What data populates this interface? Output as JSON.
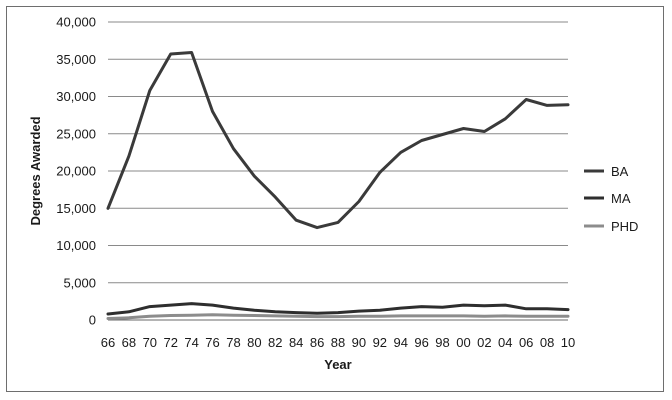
{
  "chart_data": {
    "type": "line",
    "title": "",
    "xlabel": "Year",
    "ylabel": "Degrees Awarded",
    "categories": [
      "66",
      "68",
      "70",
      "72",
      "74",
      "76",
      "78",
      "80",
      "82",
      "84",
      "86",
      "88",
      "90",
      "92",
      "94",
      "96",
      "98",
      "00",
      "02",
      "04",
      "06",
      "08",
      "10"
    ],
    "yticks": [
      "0",
      "5,000",
      "10,000",
      "15,000",
      "20,000",
      "25,000",
      "30,000",
      "35,000",
      "40,000"
    ],
    "ylim": [
      0,
      40000
    ],
    "grid": "horizontal",
    "legend_position": "right",
    "series": [
      {
        "name": "BA",
        "color": "#3a3a3a",
        "values": [
          15000,
          22000,
          30800,
          35700,
          35900,
          28000,
          23000,
          19300,
          16500,
          13400,
          12400,
          13100,
          15900,
          19800,
          22500,
          24100,
          24900,
          25700,
          25300,
          27000,
          29600,
          28800,
          28900
        ]
      },
      {
        "name": "MA",
        "color": "#2e2e2e",
        "values": [
          800,
          1100,
          1800,
          2000,
          2200,
          2000,
          1600,
          1300,
          1100,
          1000,
          900,
          1000,
          1200,
          1300,
          1600,
          1800,
          1700,
          2000,
          1900,
          2000,
          1500,
          1500,
          1400
        ]
      },
      {
        "name": "PHD",
        "color": "#8c8c8c",
        "values": [
          200,
          300,
          500,
          600,
          650,
          700,
          650,
          600,
          550,
          500,
          450,
          450,
          500,
          500,
          550,
          550,
          550,
          550,
          500,
          550,
          500,
          500,
          500
        ]
      }
    ]
  }
}
